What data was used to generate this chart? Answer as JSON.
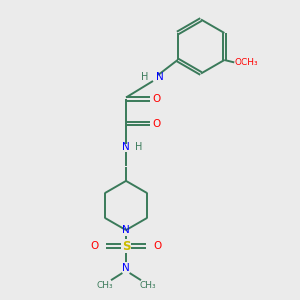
{
  "bg_color": "#ebebeb",
  "bond_color": "#3a7a5a",
  "N_color": "#0000ff",
  "O_color": "#ff0000",
  "S_color": "#ccbb00",
  "lw": 1.4,
  "fig_size": [
    3.0,
    3.0
  ],
  "dpi": 100,
  "xlim": [
    0,
    10
  ],
  "ylim": [
    0,
    10
  ]
}
